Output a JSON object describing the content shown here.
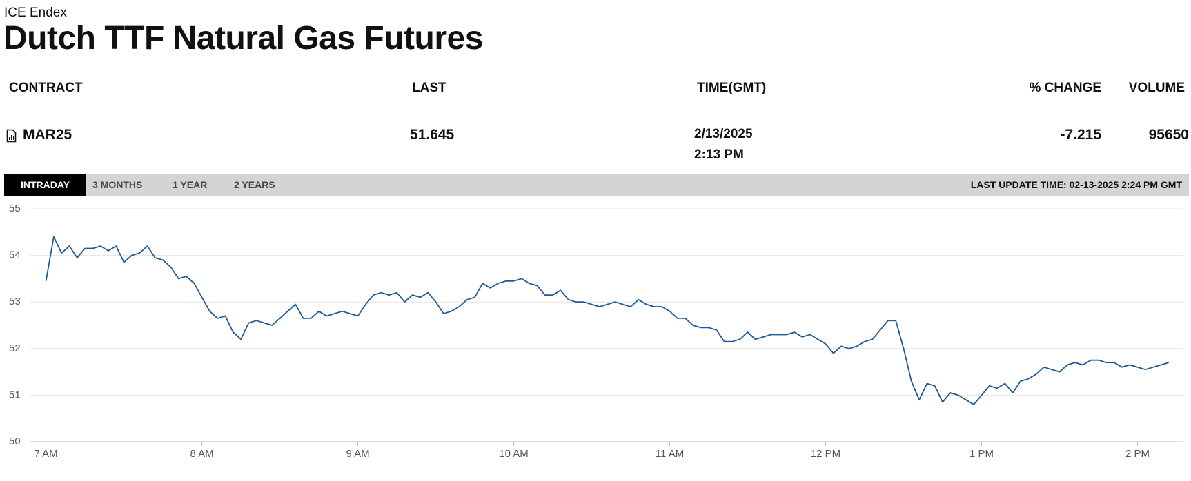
{
  "header": {
    "source": "ICE Endex",
    "title": "Dutch TTF Natural Gas Futures"
  },
  "table": {
    "columns": [
      "CONTRACT",
      "LAST",
      "TIME(GMT)",
      "% CHANGE",
      "VOLUME"
    ],
    "row": {
      "contract": "MAR25",
      "last": "51.645",
      "date": "2/13/2025",
      "time": "2:13 PM",
      "change": "-7.215",
      "volume": "95650"
    }
  },
  "tabs": [
    "INTRADAY",
    "3 MONTHS",
    "1 YEAR",
    "2 YEARS"
  ],
  "last_update": "LAST UPDATE TIME: 02-13-2025 2:24 PM GMT",
  "chart_data": {
    "type": "line",
    "color": "#1f5a96",
    "grid": true,
    "xlim": [
      6.9,
      14.29
    ],
    "xticks": [
      {
        "value": 7,
        "label": "7 AM"
      },
      {
        "value": 8,
        "label": "8 AM"
      },
      {
        "value": 9,
        "label": "9 AM"
      },
      {
        "value": 10,
        "label": "10 AM"
      },
      {
        "value": 11,
        "label": "11 AM"
      },
      {
        "value": 12,
        "label": "12 PM"
      },
      {
        "value": 13,
        "label": "1 PM"
      },
      {
        "value": 14,
        "label": "2 PM"
      }
    ],
    "ylim": [
      50,
      55
    ],
    "yticks": [
      50,
      51,
      52,
      53,
      54,
      55
    ],
    "x": [
      7,
      7.05,
      7.1,
      7.15,
      7.2,
      7.25,
      7.3,
      7.35,
      7.4,
      7.45,
      7.5,
      7.55,
      7.6,
      7.65,
      7.7,
      7.75,
      7.8,
      7.85,
      7.9,
      7.95,
      8,
      8.05,
      8.1,
      8.15,
      8.2,
      8.25,
      8.3,
      8.35,
      8.4,
      8.45,
      8.5,
      8.55,
      8.6,
      8.65,
      8.7,
      8.75,
      8.8,
      8.85,
      8.9,
      8.95,
      9,
      9.05,
      9.1,
      9.15,
      9.2,
      9.25,
      9.3,
      9.35,
      9.4,
      9.45,
      9.5,
      9.55,
      9.6,
      9.65,
      9.7,
      9.75,
      9.8,
      9.85,
      9.9,
      9.95,
      10,
      10.05,
      10.1,
      10.15,
      10.2,
      10.25,
      10.3,
      10.35,
      10.4,
      10.45,
      10.5,
      10.55,
      10.6,
      10.65,
      10.7,
      10.75,
      10.8,
      10.85,
      10.9,
      10.95,
      11,
      11.05,
      11.1,
      11.15,
      11.2,
      11.25,
      11.3,
      11.35,
      11.4,
      11.45,
      11.5,
      11.55,
      11.6,
      11.65,
      11.7,
      11.75,
      11.8,
      11.85,
      11.9,
      11.95,
      12,
      12.05,
      12.1,
      12.15,
      12.2,
      12.25,
      12.3,
      12.35,
      12.4,
      12.45,
      12.5,
      12.55,
      12.6,
      12.65,
      12.7,
      12.75,
      12.8,
      12.85,
      12.9,
      12.95,
      13,
      13.05,
      13.1,
      13.15,
      13.2,
      13.25,
      13.3,
      13.35,
      13.4,
      13.45,
      13.5,
      13.55,
      13.6,
      13.65,
      13.7,
      13.75,
      13.8,
      13.85,
      13.9,
      13.95,
      14,
      14.05,
      14.1,
      14.15,
      14.2
    ],
    "values": [
      53.45,
      54.4,
      54.05,
      54.2,
      53.95,
      54.15,
      54.15,
      54.2,
      54.1,
      54.2,
      53.85,
      54.0,
      54.05,
      54.2,
      53.95,
      53.9,
      53.75,
      53.5,
      53.55,
      53.4,
      53.1,
      52.8,
      52.65,
      52.7,
      52.35,
      52.2,
      52.55,
      52.6,
      52.55,
      52.5,
      52.65,
      52.8,
      52.95,
      52.65,
      52.65,
      52.8,
      52.7,
      52.75,
      52.8,
      52.75,
      52.7,
      52.95,
      53.15,
      53.2,
      53.15,
      53.2,
      53.0,
      53.15,
      53.1,
      53.2,
      53.0,
      52.75,
      52.8,
      52.9,
      53.05,
      53.1,
      53.4,
      53.3,
      53.4,
      53.45,
      53.45,
      53.5,
      53.4,
      53.35,
      53.15,
      53.15,
      53.25,
      53.05,
      53.0,
      53.0,
      52.95,
      52.9,
      52.95,
      53.0,
      52.95,
      52.9,
      53.05,
      52.95,
      52.9,
      52.9,
      52.8,
      52.65,
      52.65,
      52.5,
      52.45,
      52.45,
      52.4,
      52.15,
      52.15,
      52.2,
      52.35,
      52.2,
      52.25,
      52.3,
      52.3,
      52.3,
      52.35,
      52.25,
      52.3,
      52.2,
      52.1,
      51.9,
      52.05,
      52.0,
      52.05,
      52.15,
      52.2,
      52.4,
      52.6,
      52.6,
      52.0,
      51.3,
      50.9,
      51.25,
      51.2,
      50.85,
      51.05,
      51.0,
      50.9,
      50.8,
      51.0,
      51.2,
      51.15,
      51.25,
      51.05,
      51.3,
      51.35,
      51.45,
      51.6,
      51.55,
      51.5,
      51.65,
      51.7,
      51.65,
      51.75,
      51.75,
      51.7,
      51.7,
      51.6,
      51.65,
      51.6,
      51.55,
      51.6,
      51.65,
      51.7
    ]
  }
}
